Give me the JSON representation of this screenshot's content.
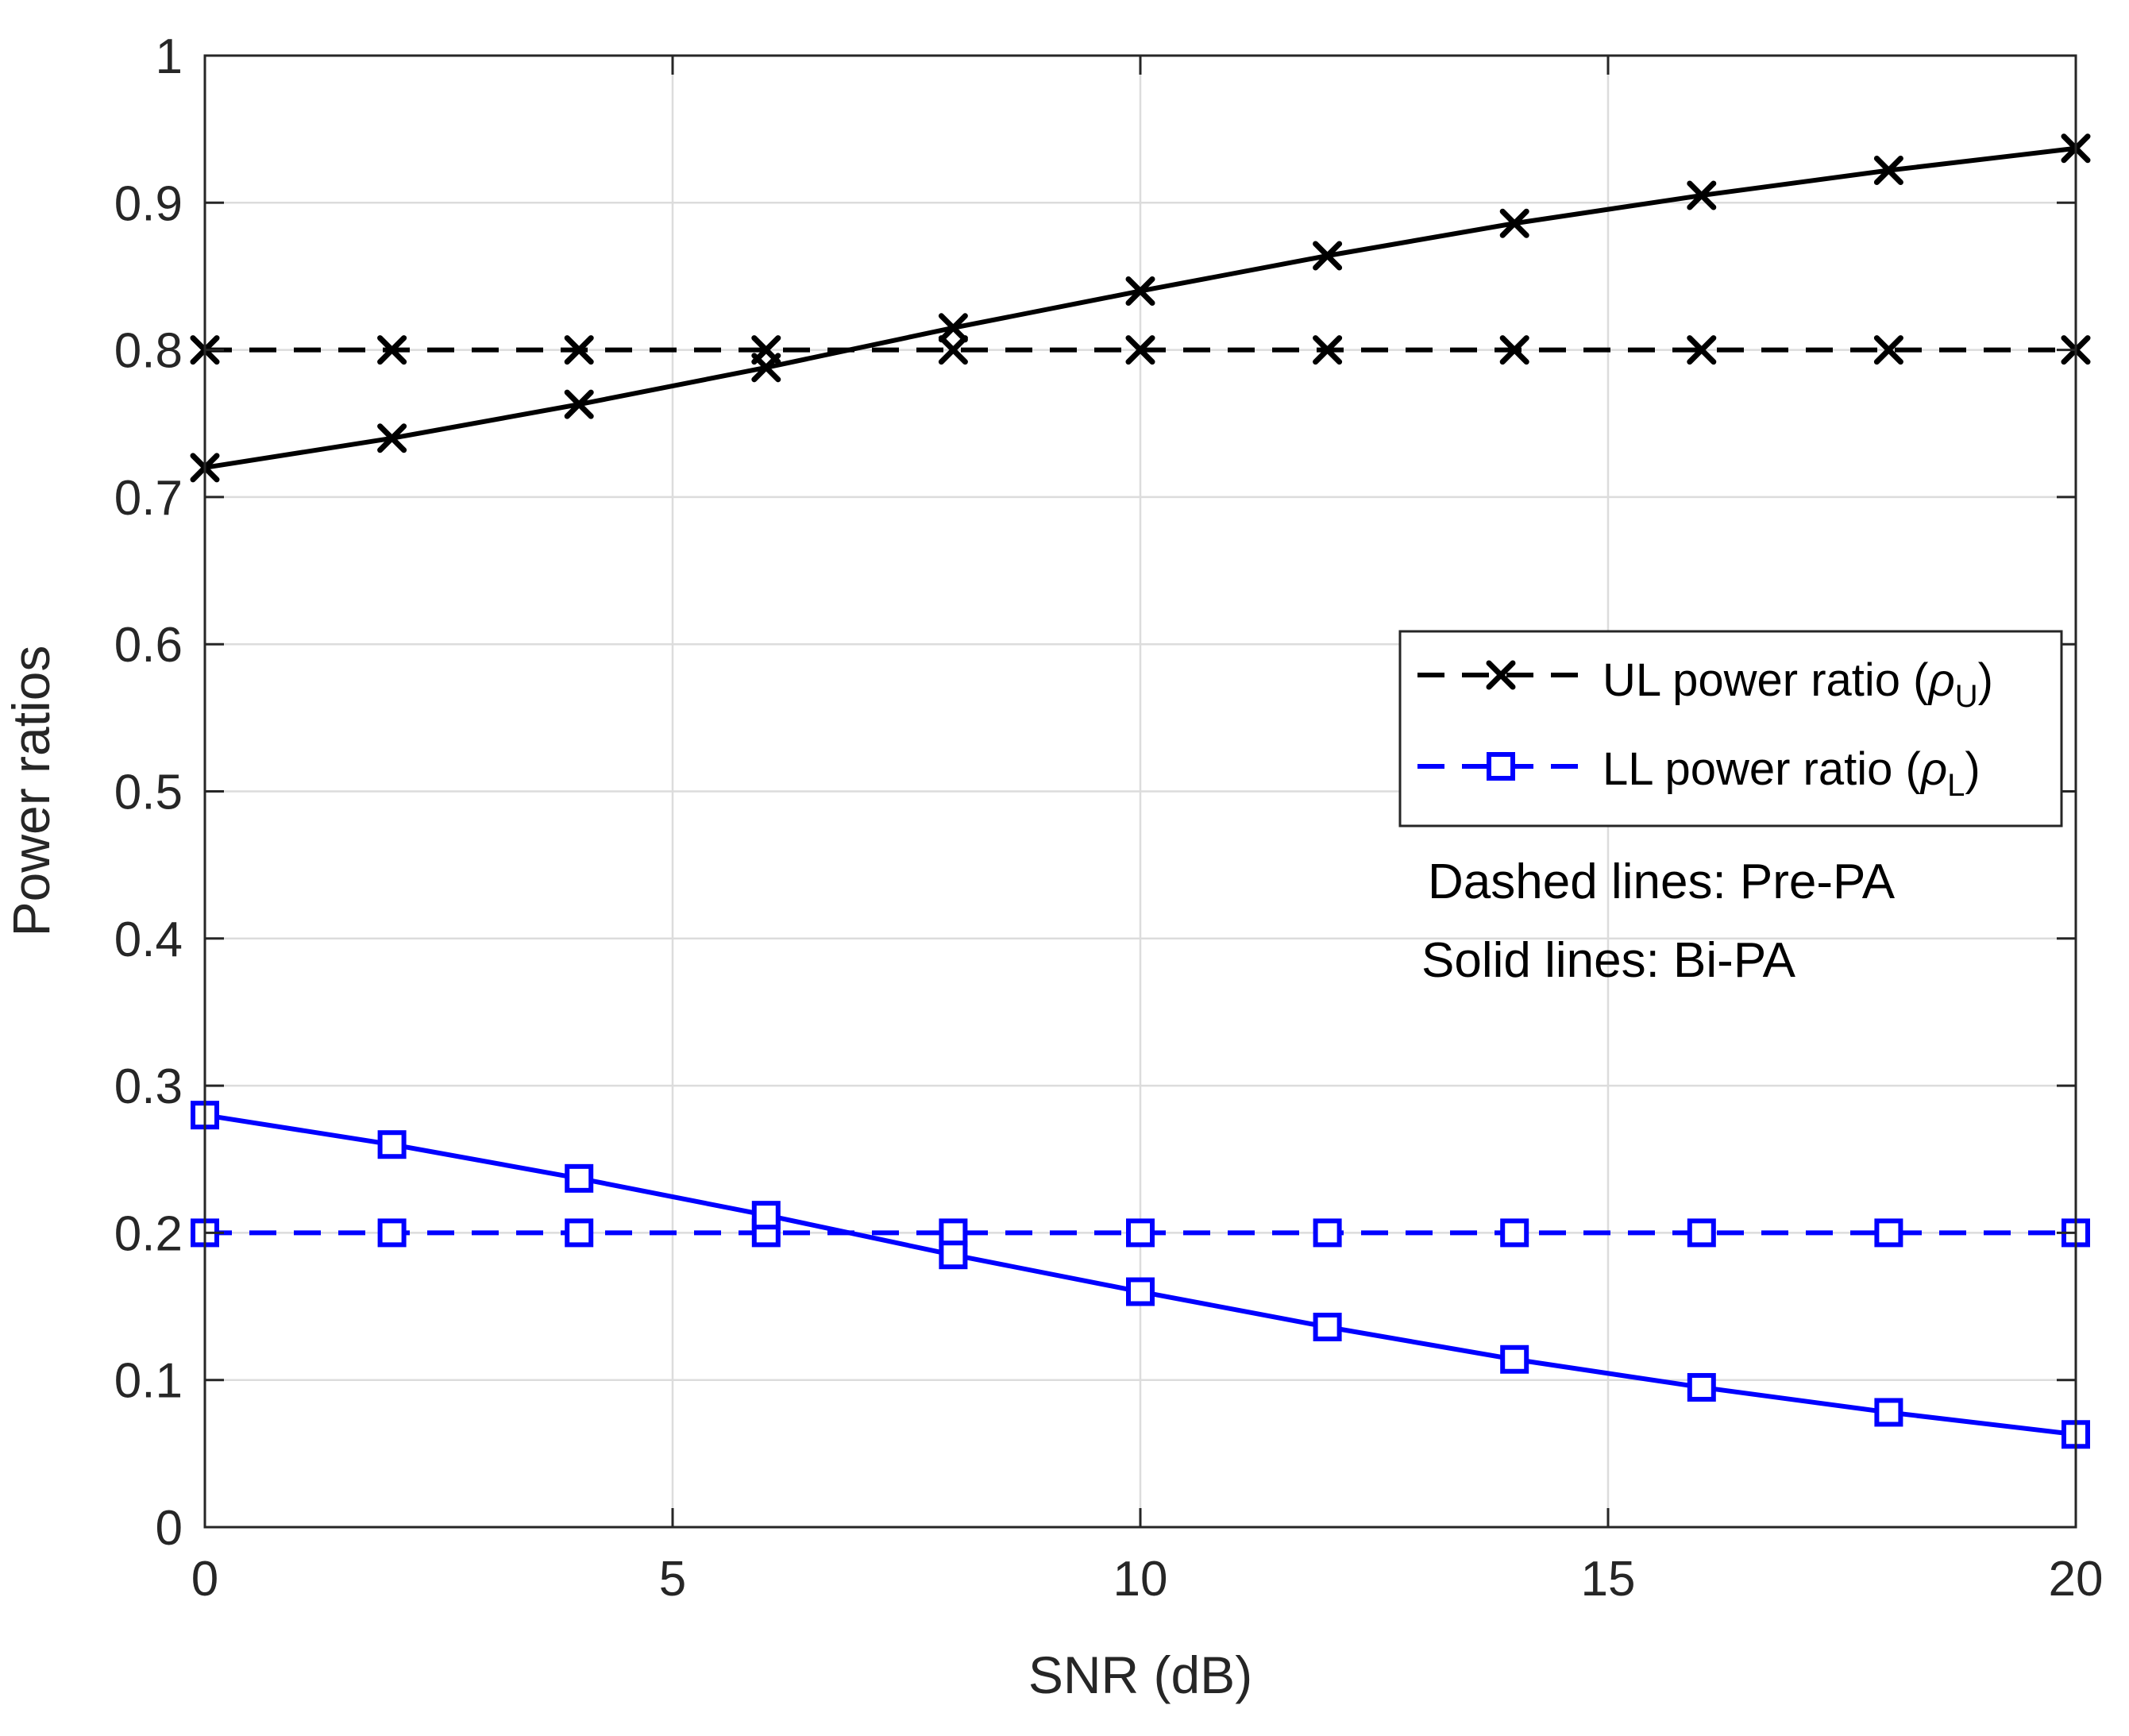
{
  "chart_data": {
    "type": "line",
    "title": "",
    "xlabel": "SNR (dB)",
    "ylabel": "Power ratios",
    "xlim": [
      0,
      20
    ],
    "ylim": [
      0,
      1
    ],
    "grid": true,
    "x_ticks": [
      0,
      5,
      10,
      15,
      20
    ],
    "y_ticks": [
      0,
      0.1,
      0.2,
      0.3,
      0.4,
      0.5,
      0.6,
      0.7,
      0.8,
      0.9,
      1
    ],
    "x_tick_labels": [
      "0",
      "5",
      "10",
      "15",
      "20"
    ],
    "y_tick_labels": [
      "0",
      "0.1",
      "0.2",
      "0.3",
      "0.4",
      "0.5",
      "0.6",
      "0.7",
      "0.8",
      "0.9",
      "1"
    ],
    "x": [
      0,
      2,
      4,
      6,
      8,
      10,
      12,
      14,
      16,
      18,
      20
    ],
    "series": [
      {
        "name": "UL power ratio, Pre-PA",
        "group": "UL",
        "style": "dashed",
        "marker": "x",
        "color": "#000000",
        "values": [
          0.8,
          0.8,
          0.8,
          0.8,
          0.8,
          0.8,
          0.8,
          0.8,
          0.8,
          0.8,
          0.8
        ]
      },
      {
        "name": "UL power ratio, Bi-PA",
        "group": "UL",
        "style": "solid",
        "marker": "x",
        "color": "#000000",
        "values": [
          0.72,
          0.74,
          0.763,
          0.788,
          0.815,
          0.84,
          0.864,
          0.886,
          0.905,
          0.922,
          0.937
        ]
      },
      {
        "name": "LL power ratio, Pre-PA",
        "group": "LL",
        "style": "dashed",
        "marker": "square",
        "color": "#0000ff",
        "values": [
          0.2,
          0.2,
          0.2,
          0.2,
          0.2,
          0.2,
          0.2,
          0.2,
          0.2,
          0.2,
          0.2
        ]
      },
      {
        "name": "LL power ratio, Bi-PA",
        "group": "LL",
        "style": "solid",
        "marker": "square",
        "color": "#0000ff",
        "values": [
          0.28,
          0.26,
          0.237,
          0.212,
          0.185,
          0.16,
          0.136,
          0.114,
          0.095,
          0.078,
          0.063
        ]
      }
    ],
    "legend": {
      "position": "center-right",
      "entries": [
        {
          "label": "UL power ratio (",
          "symbol": "ρ",
          "subscript": "U",
          "close": ")",
          "marker": "x",
          "color": "#000000"
        },
        {
          "label": "LL power ratio (",
          "symbol": "ρ",
          "subscript": "L",
          "close": ")",
          "marker": "square",
          "color": "#0000ff"
        }
      ]
    },
    "annotations": [
      "Dashed lines: Pre-PA",
      "Solid lines: Bi-PA"
    ]
  }
}
